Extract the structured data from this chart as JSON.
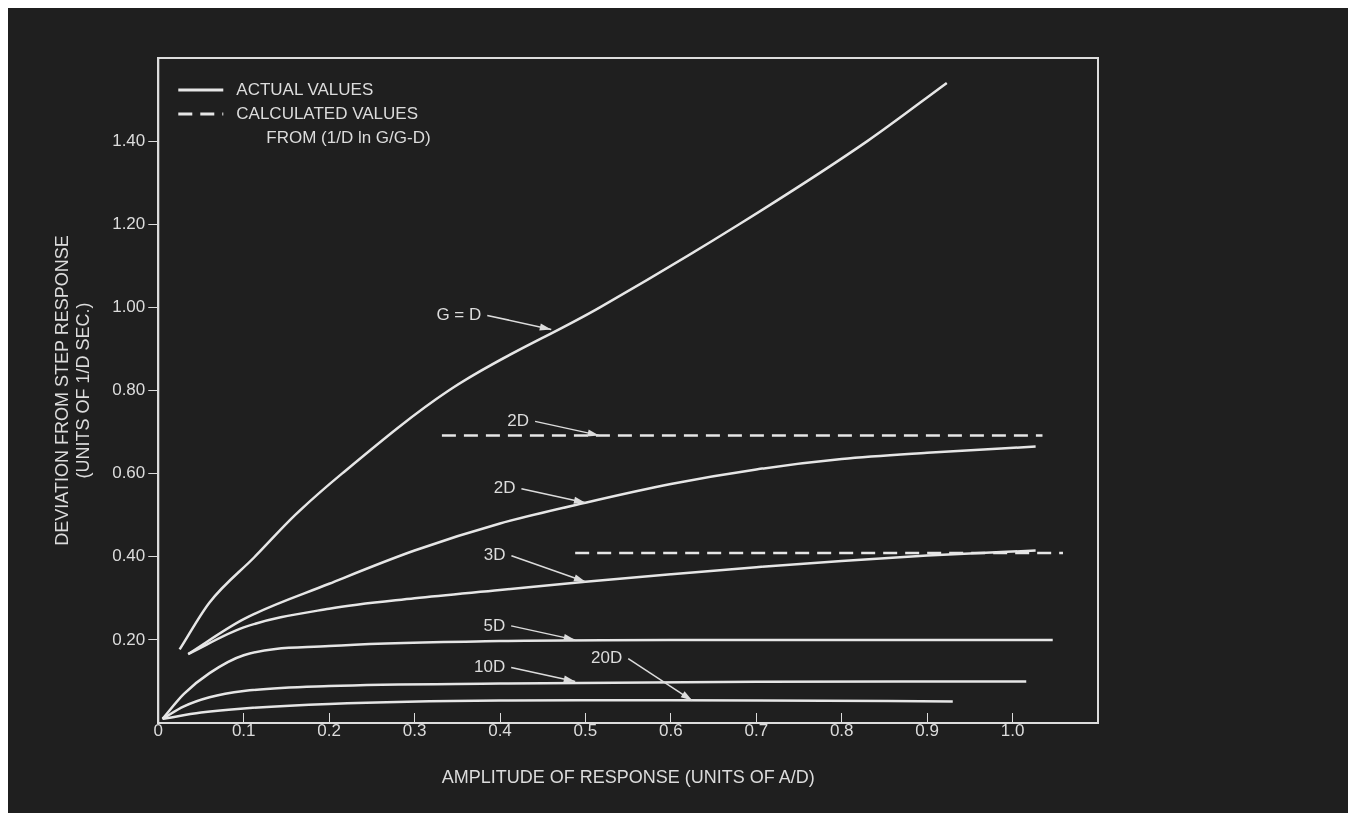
{
  "chart_data": {
    "type": "line",
    "xlabel": "AMPLITUDE OF RESPONSE (UNITS OF A/D)",
    "ylabel": "DEVIATION FROM STEP RESPONSE (UNITS OF 1/D SEC.)",
    "xlim": [
      0,
      1.1
    ],
    "ylim": [
      0,
      1.6
    ],
    "xticks": [
      {
        "value": 0,
        "label": "0"
      },
      0.1,
      0.2,
      0.3,
      0.4,
      0.5,
      0.6,
      0.7,
      0.8,
      0.9,
      {
        "value": 1,
        "label": "1.0"
      }
    ],
    "yticks": [
      {
        "value": 0.2,
        "label": "0.20"
      },
      {
        "value": 0.4,
        "label": "0.40"
      },
      {
        "value": 0.6,
        "label": "0.60"
      },
      {
        "value": 0.8,
        "label": "0.80"
      },
      {
        "value": 1,
        "label": "1.00"
      },
      {
        "value": 1.2,
        "label": "1.20"
      },
      {
        "value": 1.4,
        "label": "1.40"
      }
    ],
    "grid": false,
    "legend": "top left",
    "marker": "none",
    "series": [
      {
        "name": "ACTUAL VALUES",
        "color": "#e6e6e6",
        "line_style": "solid",
        "x": [
          0.025,
          0.06,
          0.113,
          0.16,
          0.215,
          0.34,
          0.517,
          0.68,
          0.83,
          0.923
        ],
        "values": [
          0.177,
          0.29,
          0.4,
          0.5,
          0.6,
          0.8,
          1.0,
          1.2,
          1.4,
          1.54
        ]
      },
      {
        "color": "#e6e6e6",
        "line_style": "solid",
        "x": [
          0.035,
          0.1,
          0.2,
          0.3,
          0.4,
          0.5,
          0.6,
          0.7,
          0.8,
          0.9,
          1.027
        ],
        "values": [
          0.166,
          0.25,
          0.335,
          0.415,
          0.48,
          0.53,
          0.575,
          0.61,
          0.635,
          0.65,
          0.665
        ]
      },
      {
        "color": "#e6e6e6",
        "line_style": "solid",
        "x": [
          0.035,
          0.1,
          0.2,
          0.3,
          0.4,
          0.5,
          0.6,
          0.7,
          0.8,
          0.9,
          1.027
        ],
        "values": [
          0.166,
          0.23,
          0.275,
          0.3,
          0.32,
          0.34,
          0.358,
          0.375,
          0.39,
          0.403,
          0.415
        ]
      },
      {
        "color": "#e6e6e6",
        "line_style": "solid",
        "x": [
          0.005,
          0.03,
          0.06,
          0.1,
          0.2,
          0.4,
          0.6,
          1.047
        ],
        "values": [
          0.01,
          0.07,
          0.12,
          0.163,
          0.185,
          0.197,
          0.2,
          0.2
        ]
      },
      {
        "color": "#e6e6e6",
        "line_style": "solid",
        "x": [
          0.005,
          0.03,
          0.06,
          0.1,
          0.2,
          0.4,
          0.7,
          1.016
        ],
        "values": [
          0.01,
          0.04,
          0.062,
          0.077,
          0.089,
          0.095,
          0.099,
          0.1
        ]
      },
      {
        "color": "#e6e6e6",
        "line_style": "solid",
        "x": [
          0.005,
          0.05,
          0.1,
          0.2,
          0.4,
          0.6,
          0.93
        ],
        "values": [
          0.01,
          0.025,
          0.035,
          0.046,
          0.054,
          0.055,
          0.052
        ]
      },
      {
        "name": "CALCULATED VALUES FROM (1/D ln G/G-D)",
        "color": "#e6e6e6",
        "line_style": "dashed",
        "x": [
          0.332,
          1.035
        ],
        "values": [
          0.692,
          0.692
        ]
      },
      {
        "color": "#e6e6e6",
        "line_style": "dashed",
        "x": [
          0.488,
          1.059
        ],
        "values": [
          0.409,
          0.409
        ]
      }
    ],
    "annotations": [
      {
        "text": "G = D",
        "x": 0.46,
        "y": 0.947
      },
      {
        "text": "2D",
        "x": 0.516,
        "y": 0.692
      },
      {
        "text": "2D",
        "x": 0.5,
        "y": 0.53
      },
      {
        "text": "3D",
        "x": 0.5,
        "y": 0.34
      },
      {
        "text": "5D",
        "x": 0.488,
        "y": 0.2
      },
      {
        "text": "10D",
        "x": 0.488,
        "y": 0.1
      },
      {
        "text": "20D",
        "x": 0.625,
        "y": 0.054
      }
    ]
  }
}
